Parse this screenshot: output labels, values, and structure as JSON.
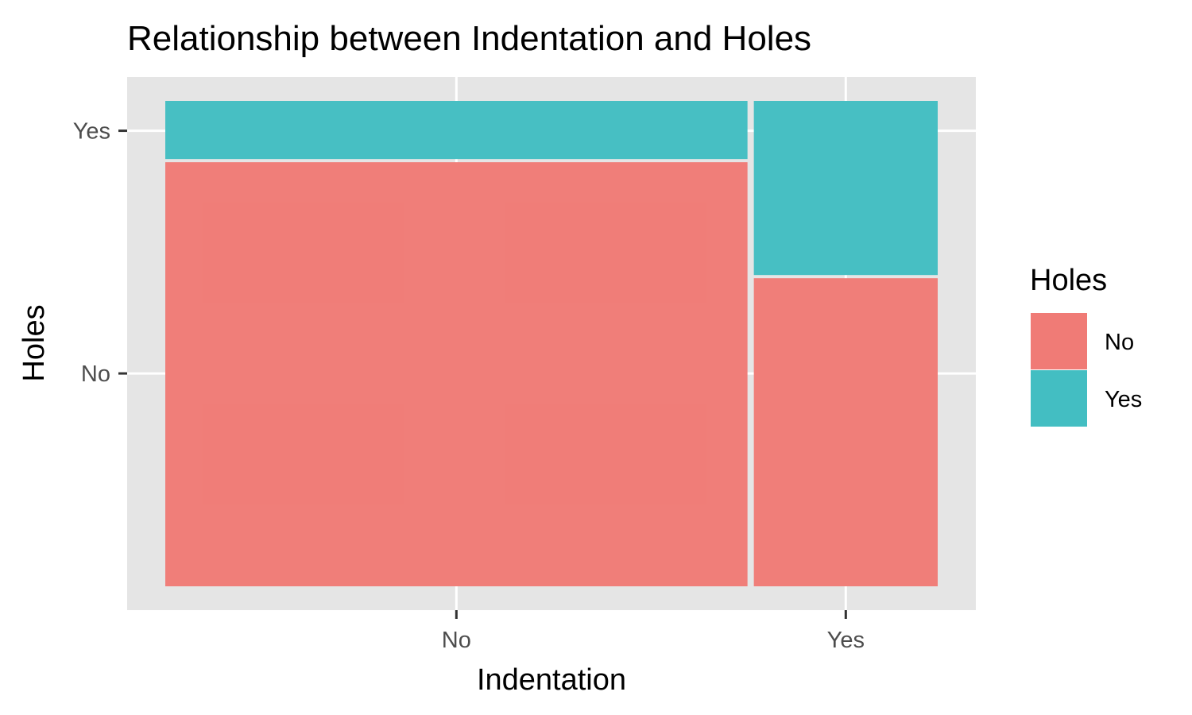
{
  "chart_data": {
    "type": "mosaic",
    "title": "Relationship between Indentation and Holes",
    "xlabel": "Indentation",
    "ylabel": "Holes",
    "categories": [
      "No",
      "Yes"
    ],
    "x_weights": [
      0.76,
      0.24
    ],
    "series": [
      {
        "name": "No",
        "values": [
          0.877,
          0.638
        ]
      },
      {
        "name": "Yes",
        "values": [
          0.123,
          0.362
        ]
      }
    ],
    "y_ticks": [
      "No",
      "Yes"
    ],
    "legend": {
      "title": "Holes",
      "position": "right",
      "entries": [
        "No",
        "Yes"
      ]
    },
    "colors": {
      "No": "#F07B76",
      "Yes": "#43BEC2",
      "panel": "#E5E5E5",
      "grid": "#FFFFFF"
    },
    "grid": true
  }
}
